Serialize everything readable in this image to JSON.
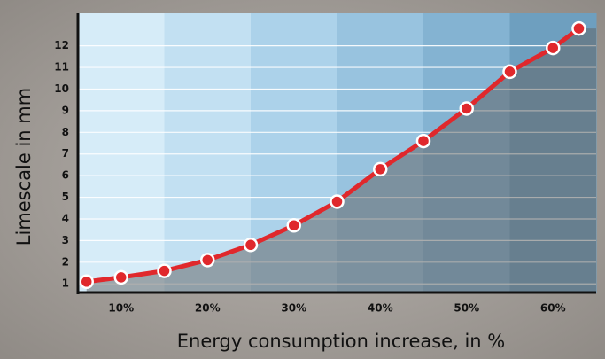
{
  "chart_data": {
    "type": "line",
    "x_label": "Energy consumption increase, in %",
    "y_label": "Limescale in mm",
    "x": [
      6,
      10,
      15,
      20,
      25,
      30,
      35,
      40,
      45,
      50,
      55,
      60,
      63
    ],
    "series": [
      {
        "color": "#e0282c",
        "values": [
          1.1,
          1.3,
          1.6,
          2.1,
          2.8,
          3.7,
          4.8,
          6.3,
          7.6,
          9.1,
          10.8,
          11.9,
          12.8
        ]
      }
    ],
    "xlim": [
      5,
      65
    ],
    "xticks": [
      {
        "value": 10,
        "label": "10%"
      },
      {
        "value": 20,
        "label": "20%"
      },
      {
        "value": 30,
        "label": "30%"
      },
      {
        "value": 40,
        "label": "40%"
      },
      {
        "value": 50,
        "label": "50%"
      },
      {
        "value": 60,
        "label": "60%"
      }
    ],
    "ylim": [
      0.6,
      13.5
    ],
    "yticks": [
      1,
      2,
      3,
      4,
      5,
      6,
      7,
      8,
      9,
      10,
      11,
      12
    ],
    "grid": true
  }
}
